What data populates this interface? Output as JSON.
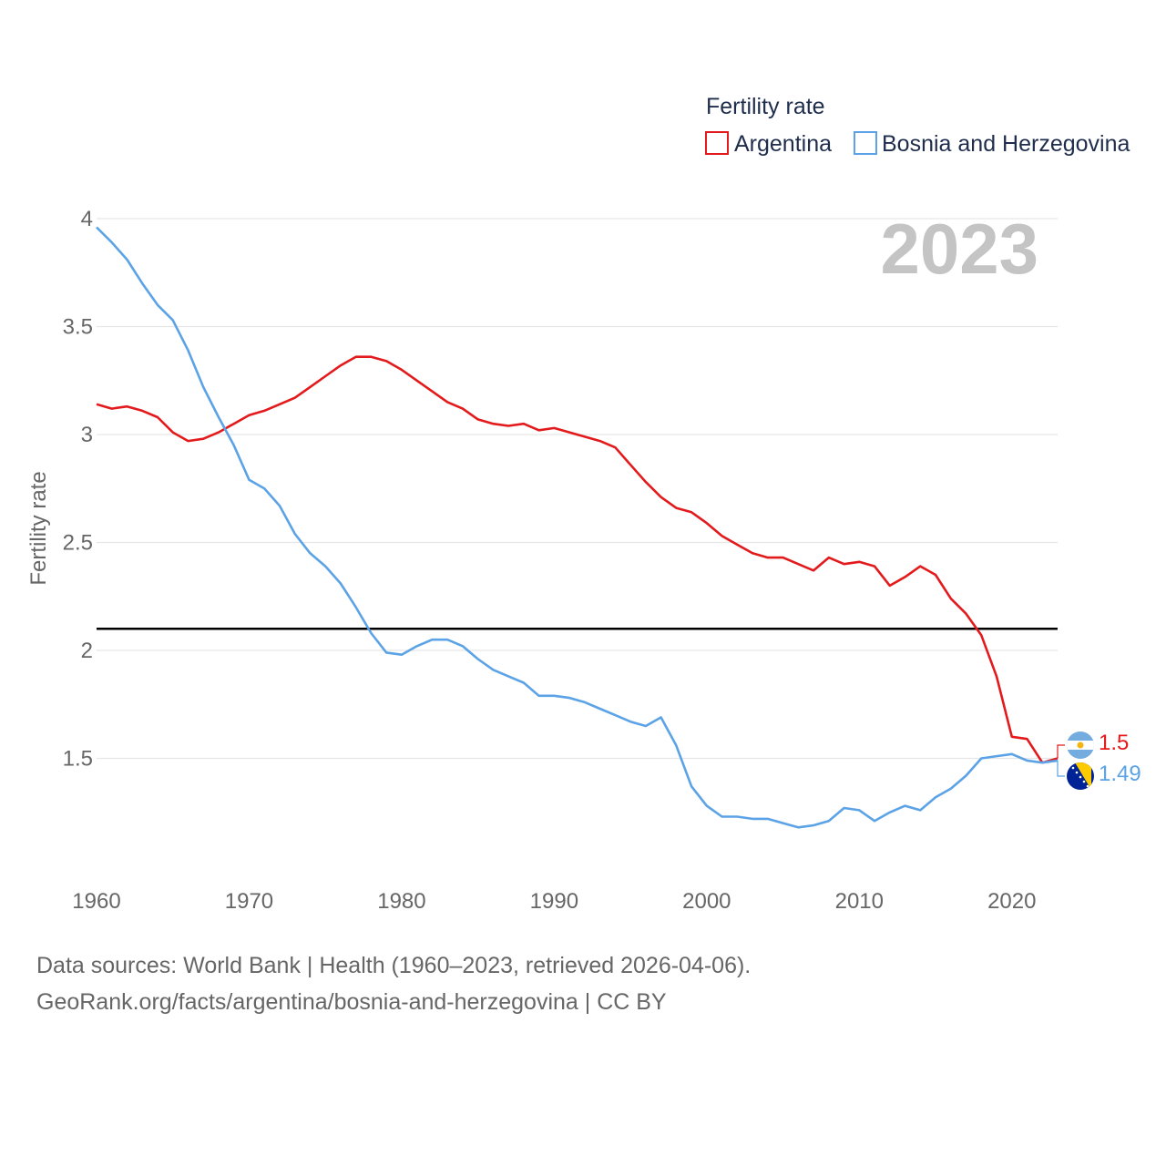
{
  "chart_data": {
    "type": "line",
    "legend_title": "Fertility rate",
    "ylabel": "Fertility rate",
    "xlabel": "",
    "year_label": "2023",
    "x": [
      1960,
      1961,
      1962,
      1963,
      1964,
      1965,
      1966,
      1967,
      1968,
      1969,
      1970,
      1971,
      1972,
      1973,
      1974,
      1975,
      1976,
      1977,
      1978,
      1979,
      1980,
      1981,
      1982,
      1983,
      1984,
      1985,
      1986,
      1987,
      1988,
      1989,
      1990,
      1991,
      1992,
      1993,
      1994,
      1995,
      1996,
      1997,
      1998,
      1999,
      2000,
      2001,
      2002,
      2003,
      2004,
      2005,
      2006,
      2007,
      2008,
      2009,
      2010,
      2011,
      2012,
      2013,
      2014,
      2015,
      2016,
      2017,
      2018,
      2019,
      2020,
      2021,
      2022,
      2023
    ],
    "series": [
      {
        "name": "Argentina",
        "color": "#e31a1c",
        "end_label": "1.5",
        "values": [
          3.14,
          3.12,
          3.13,
          3.11,
          3.08,
          3.01,
          2.97,
          2.98,
          3.01,
          3.05,
          3.09,
          3.11,
          3.14,
          3.17,
          3.22,
          3.27,
          3.32,
          3.36,
          3.36,
          3.34,
          3.3,
          3.25,
          3.2,
          3.15,
          3.12,
          3.07,
          3.05,
          3.04,
          3.05,
          3.02,
          3.03,
          3.01,
          2.99,
          2.97,
          2.94,
          2.86,
          2.78,
          2.71,
          2.66,
          2.64,
          2.59,
          2.53,
          2.49,
          2.45,
          2.43,
          2.43,
          2.4,
          2.37,
          2.43,
          2.4,
          2.41,
          2.39,
          2.3,
          2.34,
          2.39,
          2.35,
          2.24,
          2.17,
          2.07,
          1.88,
          1.6,
          1.59,
          1.48,
          1.5
        ]
      },
      {
        "name": "Bosnia and Herzegovina",
        "color": "#5ba3e6",
        "end_label": "1.49",
        "values": [
          3.96,
          3.89,
          3.81,
          3.7,
          3.6,
          3.53,
          3.39,
          3.22,
          3.08,
          2.95,
          2.79,
          2.75,
          2.67,
          2.54,
          2.45,
          2.39,
          2.31,
          2.2,
          2.08,
          1.99,
          1.98,
          2.02,
          2.05,
          2.05,
          2.02,
          1.96,
          1.91,
          1.88,
          1.85,
          1.79,
          1.79,
          1.78,
          1.76,
          1.73,
          1.7,
          1.67,
          1.65,
          1.69,
          1.56,
          1.37,
          1.28,
          1.23,
          1.23,
          1.22,
          1.22,
          1.2,
          1.18,
          1.19,
          1.21,
          1.27,
          1.26,
          1.21,
          1.25,
          1.28,
          1.26,
          1.32,
          1.36,
          1.42,
          1.5,
          1.51,
          1.52,
          1.49,
          1.48,
          1.49
        ]
      }
    ],
    "reference_line": {
      "y": 2.1,
      "color": "#000000"
    },
    "ylim": [
      1.0,
      4.0
    ],
    "yticks": [
      1.5,
      2,
      2.5,
      3,
      3.5,
      4
    ],
    "ytick_labels": [
      "1.5",
      "2",
      "2.5",
      "3",
      "3.5",
      "4"
    ],
    "xlim": [
      1960,
      2023
    ],
    "xticks": [
      1960,
      1970,
      1980,
      1990,
      2000,
      2010,
      2020
    ],
    "xtick_labels": [
      "1960",
      "1970",
      "1980",
      "1990",
      "2000",
      "2010",
      "2020"
    ],
    "grid": true,
    "legend_position": "top-right"
  },
  "footer": {
    "source_line": "Data sources: World Bank | Health (1960–2023, retrieved 2026-04-06).",
    "url_line": "GeoRank.org/facts/argentina/bosnia-and-herzegovina | CC BY"
  }
}
